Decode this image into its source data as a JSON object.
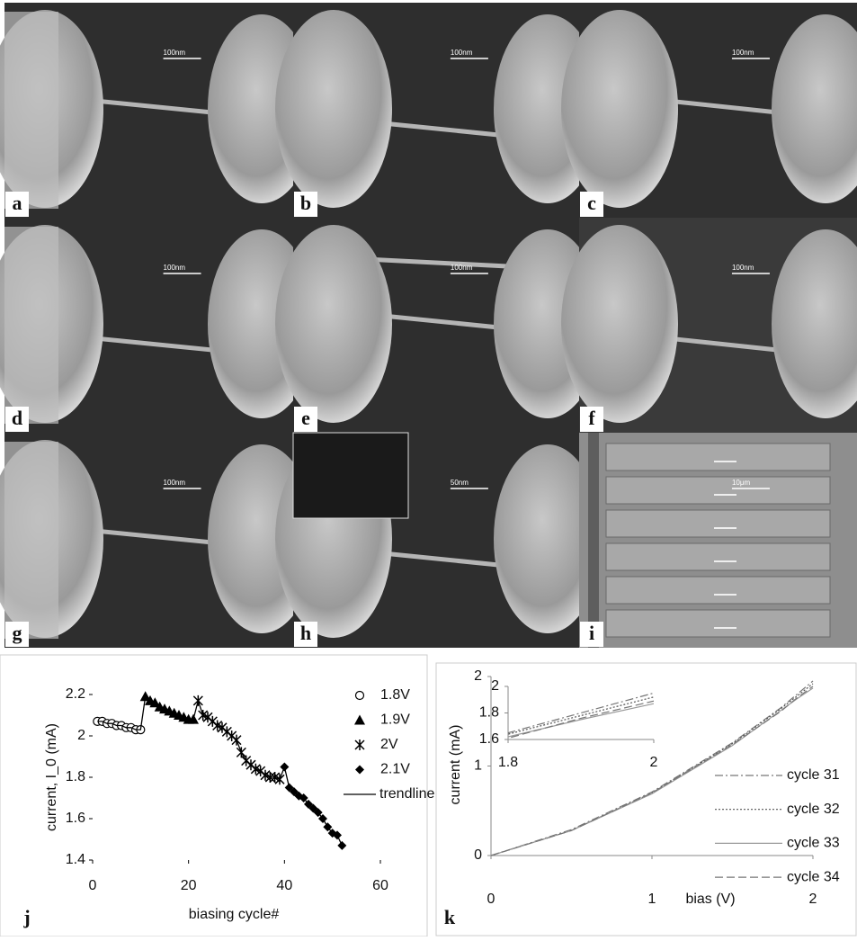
{
  "panels": [
    {
      "label": "a",
      "scale_bar": "100nm"
    },
    {
      "label": "b",
      "scale_bar": "100nm"
    },
    {
      "label": "c",
      "scale_bar": "100nm"
    },
    {
      "label": "d",
      "scale_bar": "100nm"
    },
    {
      "label": "e",
      "scale_bar": "100nm"
    },
    {
      "label": "f",
      "scale_bar": "100nm"
    },
    {
      "label": "g",
      "scale_bar": "100nm"
    },
    {
      "label": "h",
      "scale_bar": "50nm"
    },
    {
      "label": "i",
      "scale_bar": "10μm"
    }
  ],
  "chart_data": [
    {
      "type": "scatter",
      "label": "j",
      "x_label": "biasing cycle#",
      "y_label": "current, I_0 (mA)",
      "xlim": [
        0,
        60
      ],
      "xticks": [
        0,
        20,
        40,
        60
      ],
      "ylim": [
        1.4,
        2.2
      ],
      "yticks": [
        1.4,
        1.6,
        1.8,
        2,
        2.2
      ],
      "series": [
        {
          "name": "1.8V",
          "marker": "circle",
          "color": "#000",
          "x": [
            1,
            2,
            3,
            4,
            5,
            6,
            7,
            8,
            9,
            10
          ],
          "values": [
            2.07,
            2.07,
            2.06,
            2.06,
            2.05,
            2.05,
            2.04,
            2.04,
            2.03,
            2.03
          ]
        },
        {
          "name": "1.9V",
          "marker": "triangle",
          "color": "#000",
          "x": [
            11,
            12,
            13,
            14,
            15,
            16,
            17,
            18,
            19,
            20,
            21
          ],
          "values": [
            2.19,
            2.17,
            2.16,
            2.14,
            2.13,
            2.12,
            2.11,
            2.1,
            2.09,
            2.08,
            2.08
          ]
        },
        {
          "name": "2V",
          "marker": "star",
          "color": "#000",
          "x": [
            22,
            23,
            24,
            25,
            26,
            27,
            28,
            29,
            30,
            31,
            32,
            33,
            34,
            35,
            36,
            37,
            38,
            39
          ],
          "values": [
            2.17,
            2.1,
            2.09,
            2.07,
            2.05,
            2.04,
            2.02,
            2.0,
            1.98,
            1.92,
            1.88,
            1.86,
            1.84,
            1.83,
            1.81,
            1.8,
            1.8,
            1.79
          ]
        },
        {
          "name": "2.1V",
          "marker": "diamond",
          "color": "#000",
          "x": [
            40,
            41,
            42,
            43,
            44,
            45,
            46,
            47,
            48,
            49,
            50,
            51,
            52
          ],
          "values": [
            1.85,
            1.75,
            1.73,
            1.71,
            1.7,
            1.67,
            1.65,
            1.63,
            1.6,
            1.56,
            1.53,
            1.52,
            1.47
          ]
        },
        {
          "name": "trendline",
          "color": "#000",
          "x": [
            1,
            2,
            3,
            4,
            5,
            6,
            7,
            8,
            9,
            10,
            11,
            12,
            13,
            14,
            15,
            16,
            17,
            18,
            19,
            20,
            21,
            22,
            23,
            24,
            25,
            26,
            27,
            28,
            29,
            30,
            31,
            32,
            33,
            34,
            35,
            36,
            37,
            38,
            39,
            40,
            41,
            42,
            43,
            44,
            45,
            46,
            47,
            48,
            49,
            50,
            51,
            52
          ],
          "values": [
            2.07,
            2.07,
            2.06,
            2.06,
            2.05,
            2.05,
            2.04,
            2.04,
            2.03,
            2.03,
            2.19,
            2.17,
            2.16,
            2.14,
            2.13,
            2.12,
            2.11,
            2.1,
            2.09,
            2.08,
            2.08,
            2.17,
            2.1,
            2.09,
            2.07,
            2.05,
            2.04,
            2.02,
            2.0,
            1.98,
            1.92,
            1.88,
            1.86,
            1.84,
            1.83,
            1.81,
            1.8,
            1.8,
            1.79,
            1.85,
            1.75,
            1.73,
            1.71,
            1.7,
            1.67,
            1.65,
            1.63,
            1.6,
            1.56,
            1.53,
            1.52,
            1.47
          ]
        }
      ]
    },
    {
      "type": "line",
      "label": "k",
      "x_label": "bias (V)",
      "y_label": "current (mA)",
      "xlim": [
        0,
        2
      ],
      "xticks": [
        0,
        1,
        2
      ],
      "ylim": [
        0,
        2
      ],
      "yticks": [
        0,
        1,
        2
      ],
      "x": [
        0,
        0.5,
        1,
        1.5,
        1.8,
        1.9,
        2
      ],
      "series": [
        {
          "name": "cycle 31",
          "dash": "-.",
          "color": "#777",
          "values": [
            0,
            0.29,
            0.71,
            1.26,
            1.65,
            1.8,
            1.95
          ]
        },
        {
          "name": "cycle 32",
          "dash": ":",
          "color": "#555",
          "values": [
            0,
            0.28,
            0.7,
            1.25,
            1.64,
            1.78,
            1.92
          ]
        },
        {
          "name": "cycle 33",
          "dash": "-",
          "color": "#999",
          "values": [
            0,
            0.28,
            0.69,
            1.23,
            1.62,
            1.75,
            1.87
          ]
        },
        {
          "name": "cycle 34",
          "dash": "--",
          "color": "#777",
          "values": [
            0,
            0.28,
            0.7,
            1.24,
            1.61,
            1.76,
            1.89
          ]
        }
      ],
      "inset": {
        "xlim": [
          1.8,
          2
        ],
        "xticks": [
          1.8,
          2
        ],
        "ylim": [
          1.6,
          2
        ],
        "yticks": [
          1.6,
          1.8,
          2
        ]
      }
    }
  ]
}
